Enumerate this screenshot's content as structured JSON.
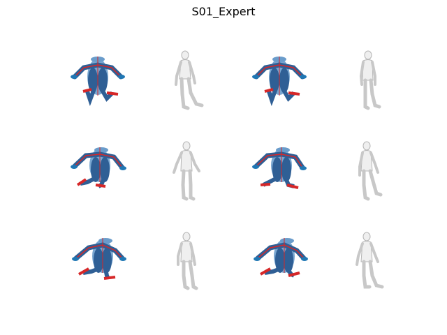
{
  "figure": {
    "title": "S01_Expert"
  },
  "colors": {
    "body_light": "#6a9ccb",
    "body_dark": "#2f5f95",
    "joint_blue": "#1f77b4",
    "bone_red": "#d62728",
    "mesh_fill": "#efefef",
    "mesh_stroke": "#b5b5b5"
  },
  "panels": {
    "r0c0": {
      "kind": "skeleton-overlay"
    },
    "r0c1": {
      "kind": "mesh-render"
    },
    "r0c2": {
      "kind": "skeleton-overlay"
    },
    "r0c3": {
      "kind": "mesh-render"
    },
    "r1c0": {
      "kind": "skeleton-overlay"
    },
    "r1c1": {
      "kind": "mesh-render"
    },
    "r1c2": {
      "kind": "skeleton-overlay"
    },
    "r1c3": {
      "kind": "mesh-render"
    },
    "r2c0": {
      "kind": "skeleton-overlay"
    },
    "r2c1": {
      "kind": "mesh-render"
    },
    "r2c2": {
      "kind": "skeleton-overlay"
    },
    "r2c3": {
      "kind": "mesh-render"
    }
  }
}
